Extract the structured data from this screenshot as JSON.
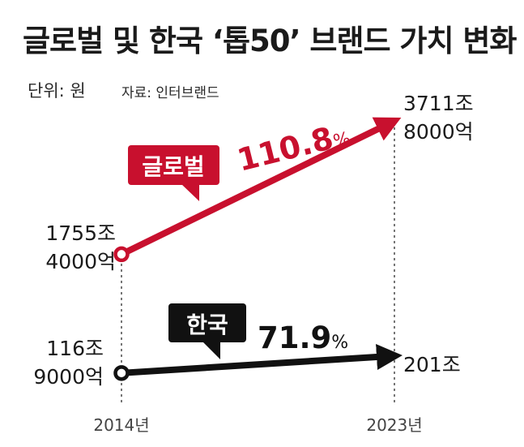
{
  "title": "글로벌 및 한국 ‘톱50’ 브랜드 가치 변화",
  "unit": "단위: 원",
  "source": "자료: 인터브랜드",
  "colors": {
    "global": "#c8102e",
    "korea": "#111111",
    "guide": "#555555"
  },
  "chart_data": {
    "type": "line",
    "title": "글로벌 및 한국 ‘톱50’ 브랜드 가치 변화",
    "categories": [
      "2014년",
      "2023년"
    ],
    "x": [
      2014,
      2023
    ],
    "series": [
      {
        "name": "글로벌",
        "values": [
          1755.4,
          3711.8
        ],
        "start_label": [
          "1755조",
          "4000억"
        ],
        "end_label": [
          "3711조",
          "8000억"
        ],
        "change_number": "110.8",
        "change_unit": "%",
        "color": "#c8102e"
      },
      {
        "name": "한국",
        "values": [
          116.9,
          201
        ],
        "start_label": [
          "116조",
          "9000억"
        ],
        "end_label": [
          "201조"
        ],
        "change_number": "71.9",
        "change_unit": "%",
        "color": "#111111"
      }
    ],
    "ylabel": "",
    "xlabel": ""
  }
}
